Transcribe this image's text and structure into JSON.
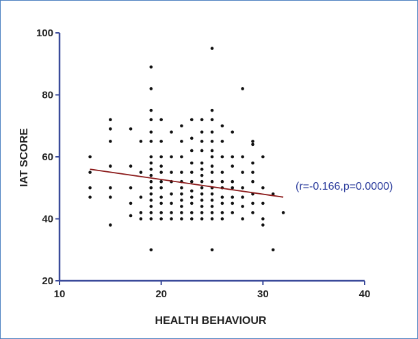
{
  "chart_data": {
    "type": "scatter",
    "title": "",
    "xlabel": "HEALTH  BEHAVIOUR",
    "ylabel": "IAT SCORE",
    "xlim": [
      10,
      40
    ],
    "ylim": [
      20,
      100
    ],
    "xticks": [
      10,
      20,
      30,
      40
    ],
    "yticks": [
      20,
      40,
      60,
      80,
      100
    ],
    "grid": false,
    "annotation": "(r=-0.166,p=0.0000)",
    "regression_line": {
      "x": [
        13,
        32
      ],
      "y": [
        56,
        47
      ],
      "color": "#8b1a1a"
    },
    "point_color": "#111111",
    "series": [
      {
        "points": [
          [
            13,
            60
          ],
          [
            13,
            55
          ],
          [
            13,
            50
          ],
          [
            13,
            47
          ],
          [
            15,
            72
          ],
          [
            15,
            69
          ],
          [
            15,
            65
          ],
          [
            15,
            57
          ],
          [
            15,
            50
          ],
          [
            15,
            47
          ],
          [
            15,
            38
          ],
          [
            17,
            69
          ],
          [
            17,
            57
          ],
          [
            17,
            50
          ],
          [
            17,
            45
          ],
          [
            17,
            41
          ],
          [
            18,
            65
          ],
          [
            18,
            55
          ],
          [
            18,
            47
          ],
          [
            18,
            42
          ],
          [
            18,
            40
          ],
          [
            19,
            89
          ],
          [
            19,
            82
          ],
          [
            19,
            75
          ],
          [
            19,
            72
          ],
          [
            19,
            68
          ],
          [
            19,
            65
          ],
          [
            19,
            60
          ],
          [
            19,
            58
          ],
          [
            19,
            56
          ],
          [
            19,
            54
          ],
          [
            19,
            52
          ],
          [
            19,
            50
          ],
          [
            19,
            48
          ],
          [
            19,
            46
          ],
          [
            19,
            44
          ],
          [
            19,
            42
          ],
          [
            19,
            40
          ],
          [
            19,
            30
          ],
          [
            20,
            72
          ],
          [
            20,
            65
          ],
          [
            20,
            60
          ],
          [
            20,
            57
          ],
          [
            20,
            55
          ],
          [
            20,
            52
          ],
          [
            20,
            50
          ],
          [
            20,
            47
          ],
          [
            20,
            45
          ],
          [
            20,
            42
          ],
          [
            20,
            40
          ],
          [
            21,
            68
          ],
          [
            21,
            60
          ],
          [
            21,
            55
          ],
          [
            21,
            52
          ],
          [
            21,
            48
          ],
          [
            21,
            45
          ],
          [
            21,
            42
          ],
          [
            21,
            40
          ],
          [
            22,
            70
          ],
          [
            22,
            65
          ],
          [
            22,
            60
          ],
          [
            22,
            55
          ],
          [
            22,
            52
          ],
          [
            22,
            50
          ],
          [
            22,
            48
          ],
          [
            22,
            46
          ],
          [
            22,
            44
          ],
          [
            22,
            42
          ],
          [
            22,
            40
          ],
          [
            23,
            72
          ],
          [
            23,
            66
          ],
          [
            23,
            62
          ],
          [
            23,
            58
          ],
          [
            23,
            55
          ],
          [
            23,
            52
          ],
          [
            23,
            49
          ],
          [
            23,
            47
          ],
          [
            23,
            45
          ],
          [
            23,
            42
          ],
          [
            23,
            40
          ],
          [
            24,
            72
          ],
          [
            24,
            68
          ],
          [
            24,
            65
          ],
          [
            24,
            62
          ],
          [
            24,
            58
          ],
          [
            24,
            56
          ],
          [
            24,
            54
          ],
          [
            24,
            52
          ],
          [
            24,
            50
          ],
          [
            24,
            48
          ],
          [
            24,
            46
          ],
          [
            24,
            44
          ],
          [
            24,
            42
          ],
          [
            24,
            40
          ],
          [
            25,
            95
          ],
          [
            25,
            75
          ],
          [
            25,
            72
          ],
          [
            25,
            68
          ],
          [
            25,
            65
          ],
          [
            25,
            62
          ],
          [
            25,
            60
          ],
          [
            25,
            57
          ],
          [
            25,
            55
          ],
          [
            25,
            52
          ],
          [
            25,
            50
          ],
          [
            25,
            48
          ],
          [
            25,
            46
          ],
          [
            25,
            44
          ],
          [
            25,
            42
          ],
          [
            25,
            40
          ],
          [
            25,
            30
          ],
          [
            26,
            70
          ],
          [
            26,
            65
          ],
          [
            26,
            60
          ],
          [
            26,
            55
          ],
          [
            26,
            52
          ],
          [
            26,
            50
          ],
          [
            26,
            47
          ],
          [
            26,
            45
          ],
          [
            26,
            42
          ],
          [
            26,
            40
          ],
          [
            27,
            68
          ],
          [
            27,
            60
          ],
          [
            27,
            57
          ],
          [
            27,
            52
          ],
          [
            27,
            50
          ],
          [
            27,
            47
          ],
          [
            27,
            45
          ],
          [
            27,
            42
          ],
          [
            28,
            82
          ],
          [
            28,
            60
          ],
          [
            28,
            55
          ],
          [
            28,
            50
          ],
          [
            28,
            47
          ],
          [
            28,
            44
          ],
          [
            28,
            40
          ],
          [
            29,
            65
          ],
          [
            29,
            64
          ],
          [
            29,
            58
          ],
          [
            29,
            55
          ],
          [
            29,
            52
          ],
          [
            29,
            48
          ],
          [
            29,
            45
          ],
          [
            29,
            42
          ],
          [
            30,
            60
          ],
          [
            30,
            50
          ],
          [
            30,
            45
          ],
          [
            30,
            40
          ],
          [
            30,
            38
          ],
          [
            31,
            48
          ],
          [
            31,
            30
          ],
          [
            32,
            42
          ]
        ]
      }
    ]
  }
}
